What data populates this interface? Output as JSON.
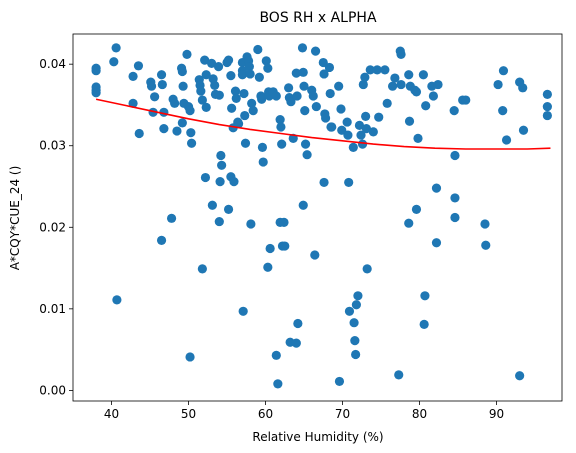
{
  "chart_data": {
    "type": "scatter",
    "title": "BOS RH x ALPHA",
    "xlabel": "Relative Humidity (%)",
    "ylabel": "A*CQY*CUE_24 ()",
    "xlim": [
      35,
      98.5
    ],
    "ylim": [
      -0.0013,
      0.0437
    ],
    "xticks": [
      40,
      50,
      60,
      70,
      80,
      90
    ],
    "yticks": [
      0.0,
      0.01,
      0.02,
      0.03,
      0.04
    ],
    "ytick_labels": [
      "0.00",
      "0.01",
      "0.02",
      "0.03",
      "0.04"
    ],
    "grid": false,
    "legend": "none",
    "colors": {
      "points": "#1f77b4",
      "fit": "#ff0000"
    },
    "series": [
      {
        "type": "scatter",
        "points": [
          [
            38,
            0.0395
          ],
          [
            38,
            0.0392
          ],
          [
            38,
            0.0372
          ],
          [
            38,
            0.0368
          ],
          [
            38,
            0.0365
          ],
          [
            40.3,
            0.0403
          ],
          [
            40.6,
            0.042
          ],
          [
            40.7,
            0.0111
          ],
          [
            42.8,
            0.0385
          ],
          [
            42.8,
            0.0352
          ],
          [
            43.5,
            0.0398
          ],
          [
            43.6,
            0.0315
          ],
          [
            45.1,
            0.0378
          ],
          [
            45.2,
            0.0373
          ],
          [
            45.4,
            0.0341
          ],
          [
            45.6,
            0.036
          ],
          [
            46.5,
            0.0387
          ],
          [
            46.6,
            0.0375
          ],
          [
            46.8,
            0.0341
          ],
          [
            46.8,
            0.0321
          ],
          [
            46.5,
            0.0184
          ],
          [
            48,
            0.0357
          ],
          [
            48.2,
            0.0352
          ],
          [
            48.5,
            0.0318
          ],
          [
            47.8,
            0.0211
          ],
          [
            49.1,
            0.0395
          ],
          [
            49.2,
            0.0391
          ],
          [
            49.3,
            0.0373
          ],
          [
            49.4,
            0.0352
          ],
          [
            49.2,
            0.0328
          ],
          [
            49.8,
            0.0412
          ],
          [
            50,
            0.0348
          ],
          [
            50.2,
            0.0343
          ],
          [
            50.3,
            0.0316
          ],
          [
            50.4,
            0.0303
          ],
          [
            50.2,
            0.0041
          ],
          [
            51.4,
            0.0381
          ],
          [
            51.5,
            0.0374
          ],
          [
            51.6,
            0.0367
          ],
          [
            51.8,
            0.0356
          ],
          [
            51.8,
            0.0149
          ],
          [
            52.1,
            0.0405
          ],
          [
            52.3,
            0.0387
          ],
          [
            52.3,
            0.0347
          ],
          [
            52.2,
            0.0261
          ],
          [
            53,
            0.0401
          ],
          [
            53.2,
            0.0382
          ],
          [
            53.4,
            0.0374
          ],
          [
            53.5,
            0.0363
          ],
          [
            53.1,
            0.0227
          ],
          [
            53.9,
            0.0397
          ],
          [
            54,
            0.0362
          ],
          [
            54.2,
            0.0288
          ],
          [
            54.3,
            0.0276
          ],
          [
            54.1,
            0.0256
          ],
          [
            54,
            0.0207
          ],
          [
            55,
            0.0402
          ],
          [
            55.2,
            0.0405
          ],
          [
            55.5,
            0.0386
          ],
          [
            55.6,
            0.0346
          ],
          [
            55.8,
            0.0322
          ],
          [
            55.5,
            0.0262
          ],
          [
            55.2,
            0.0222
          ],
          [
            55.9,
            0.0256
          ],
          [
            56.1,
            0.0367
          ],
          [
            56.2,
            0.0358
          ],
          [
            56.4,
            0.0329
          ],
          [
            56.5,
            0.0327
          ],
          [
            57,
            0.0402
          ],
          [
            57,
            0.0392
          ],
          [
            57,
            0.0387
          ],
          [
            57.2,
            0.0364
          ],
          [
            57.3,
            0.0337
          ],
          [
            57.4,
            0.0303
          ],
          [
            57.1,
            0.0097
          ],
          [
            57.6,
            0.0409
          ],
          [
            57.8,
            0.0404
          ],
          [
            57.9,
            0.0397
          ],
          [
            58,
            0.0388
          ],
          [
            58.2,
            0.0352
          ],
          [
            58.4,
            0.0343
          ],
          [
            58.1,
            0.0204
          ],
          [
            59,
            0.0418
          ],
          [
            59.2,
            0.0384
          ],
          [
            59.4,
            0.0361
          ],
          [
            59.5,
            0.0357
          ],
          [
            59.6,
            0.0298
          ],
          [
            59.7,
            0.028
          ],
          [
            60.1,
            0.0404
          ],
          [
            60.3,
            0.0395
          ],
          [
            60.4,
            0.0366
          ],
          [
            60.5,
            0.0361
          ],
          [
            60.6,
            0.0174
          ],
          [
            60.3,
            0.0151
          ],
          [
            61,
            0.0366
          ],
          [
            61.4,
            0.0361
          ],
          [
            61.4,
            0.0043
          ],
          [
            61.6,
            0.0008
          ],
          [
            61.9,
            0.0332
          ],
          [
            62,
            0.0323
          ],
          [
            62.1,
            0.0302
          ],
          [
            61.9,
            0.0206
          ],
          [
            62.4,
            0.0206
          ],
          [
            62.2,
            0.0177
          ],
          [
            62.5,
            0.0177
          ],
          [
            63,
            0.0371
          ],
          [
            63.1,
            0.0359
          ],
          [
            63.3,
            0.0354
          ],
          [
            63.6,
            0.0309
          ],
          [
            63.2,
            0.0059
          ],
          [
            64,
            0.0389
          ],
          [
            64.1,
            0.0361
          ],
          [
            64.2,
            0.0082
          ],
          [
            64,
            0.0058
          ],
          [
            64.8,
            0.042
          ],
          [
            64.9,
            0.039
          ],
          [
            65,
            0.0373
          ],
          [
            65.1,
            0.0343
          ],
          [
            65.2,
            0.0302
          ],
          [
            65.4,
            0.0289
          ],
          [
            64.9,
            0.0227
          ],
          [
            66,
            0.0368
          ],
          [
            66.2,
            0.0361
          ],
          [
            66.5,
            0.0416
          ],
          [
            66.6,
            0.0348
          ],
          [
            66.4,
            0.0166
          ],
          [
            67.5,
            0.0402
          ],
          [
            67.6,
            0.0388
          ],
          [
            67.7,
            0.0339
          ],
          [
            67.8,
            0.0334
          ],
          [
            67.6,
            0.0255
          ],
          [
            68.3,
            0.0396
          ],
          [
            68.4,
            0.0364
          ],
          [
            68.5,
            0.0323
          ],
          [
            68.6,
            0.0323
          ],
          [
            69.5,
            0.0373
          ],
          [
            69.8,
            0.0345
          ],
          [
            69.9,
            0.0319
          ],
          [
            69.6,
            0.0011
          ],
          [
            70.6,
            0.0329
          ],
          [
            70.7,
            0.0313
          ],
          [
            70.8,
            0.0255
          ],
          [
            70.9,
            0.0097
          ],
          [
            71.4,
            0.0298
          ],
          [
            71.5,
            0.0083
          ],
          [
            71.6,
            0.0061
          ],
          [
            71.7,
            0.0044
          ],
          [
            71.8,
            0.0105
          ],
          [
            72,
            0.0116
          ],
          [
            72.2,
            0.0325
          ],
          [
            72.4,
            0.0313
          ],
          [
            72.6,
            0.0302
          ],
          [
            72.7,
            0.0375
          ],
          [
            72.9,
            0.0384
          ],
          [
            73,
            0.0336
          ],
          [
            73.1,
            0.0321
          ],
          [
            73.2,
            0.0149
          ],
          [
            73.6,
            0.0393
          ],
          [
            74,
            0.0317
          ],
          [
            74.5,
            0.0393
          ],
          [
            74.7,
            0.0335
          ],
          [
            75.5,
            0.0393
          ],
          [
            75.8,
            0.0352
          ],
          [
            76.5,
            0.0373
          ],
          [
            76.8,
            0.0383
          ],
          [
            77.5,
            0.0416
          ],
          [
            77.6,
            0.0412
          ],
          [
            77.6,
            0.0375
          ],
          [
            77.3,
            0.0019
          ],
          [
            78.6,
            0.0387
          ],
          [
            78.8,
            0.0373
          ],
          [
            78.7,
            0.033
          ],
          [
            78.6,
            0.0205
          ],
          [
            79.4,
            0.0368
          ],
          [
            79.6,
            0.0366
          ],
          [
            79.8,
            0.0309
          ],
          [
            79.6,
            0.0222
          ],
          [
            80.5,
            0.0387
          ],
          [
            80.8,
            0.0349
          ],
          [
            80.7,
            0.0116
          ],
          [
            80.6,
            0.0081
          ],
          [
            81.6,
            0.0373
          ],
          [
            81.8,
            0.0361
          ],
          [
            82.4,
            0.0375
          ],
          [
            82.2,
            0.0248
          ],
          [
            82.2,
            0.0181
          ],
          [
            84.5,
            0.0343
          ],
          [
            84.6,
            0.0288
          ],
          [
            84.6,
            0.0236
          ],
          [
            84.6,
            0.0212
          ],
          [
            85.6,
            0.0356
          ],
          [
            86,
            0.0356
          ],
          [
            88.5,
            0.0204
          ],
          [
            88.6,
            0.0178
          ],
          [
            90.2,
            0.0375
          ],
          [
            90.9,
            0.0392
          ],
          [
            90.8,
            0.0343
          ],
          [
            91.3,
            0.0307
          ],
          [
            93,
            0.0378
          ],
          [
            93.4,
            0.0371
          ],
          [
            93.5,
            0.0319
          ],
          [
            93,
            0.0018
          ],
          [
            96.6,
            0.0363
          ],
          [
            96.6,
            0.0348
          ],
          [
            96.6,
            0.0337
          ]
        ]
      },
      {
        "type": "line",
        "x": [
          38,
          42,
          46,
          50,
          54,
          58,
          62,
          66,
          70,
          74,
          78,
          82,
          86,
          90,
          94,
          97
        ],
        "y": [
          0.0357,
          0.0349,
          0.0341,
          0.0333,
          0.0326,
          0.032,
          0.0315,
          0.031,
          0.0306,
          0.0302,
          0.0299,
          0.0297,
          0.0296,
          0.0296,
          0.0296,
          0.0297
        ]
      }
    ]
  }
}
